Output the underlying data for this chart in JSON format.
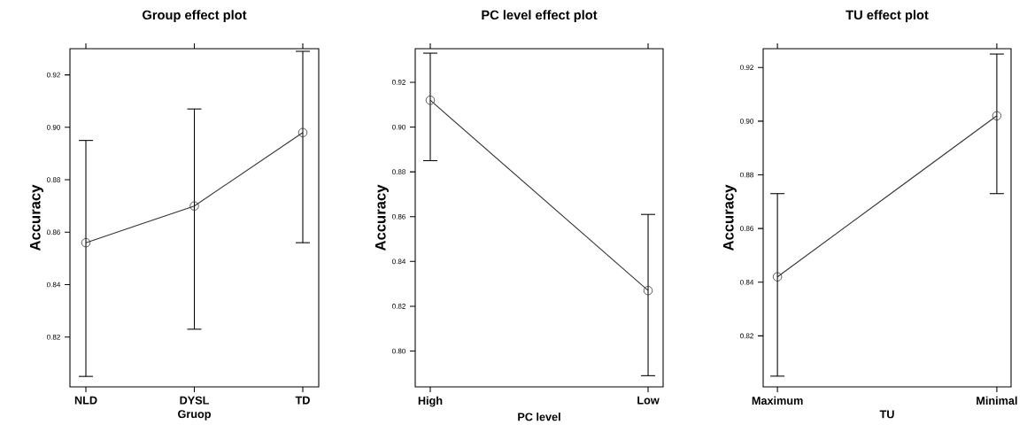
{
  "chart_data": [
    {
      "type": "line",
      "title": "Group effect plot",
      "xlabel": "Gruop",
      "ylabel": "Accuracy",
      "categories": [
        "NLD",
        "DYSL",
        "TD"
      ],
      "series": [
        {
          "color": "#333333",
          "values": [
            0.856,
            0.87,
            0.898
          ],
          "errors": [
            [
              0.805,
              0.895
            ],
            [
              0.823,
              0.907
            ],
            [
              0.856,
              0.929
            ]
          ]
        }
      ],
      "ylim": [
        0.801,
        0.93
      ],
      "yticks": [
        {
          "value": 0.82,
          "label": "0.82"
        },
        {
          "value": 0.84,
          "label": "0.84"
        },
        {
          "value": 0.86,
          "label": "0.86"
        },
        {
          "value": 0.88,
          "label": "0.88"
        },
        {
          "value": 0.9,
          "label": "0.90"
        },
        {
          "value": 0.92,
          "label": "0.92"
        }
      ],
      "marker": "circle",
      "grid": false
    },
    {
      "type": "line",
      "title": "PC level effect plot",
      "xlabel": "PC level",
      "ylabel": "Accuracy",
      "categories": [
        "High",
        "Low"
      ],
      "series": [
        {
          "color": "#333333",
          "values": [
            0.912,
            0.827
          ],
          "errors": [
            [
              0.885,
              0.933
            ],
            [
              0.789,
              0.861
            ]
          ]
        }
      ],
      "ylim": [
        0.784,
        0.935
      ],
      "yticks": [
        {
          "value": 0.8,
          "label": "0.80"
        },
        {
          "value": 0.82,
          "label": "0.82"
        },
        {
          "value": 0.84,
          "label": "0.84"
        },
        {
          "value": 0.86,
          "label": "0.86"
        },
        {
          "value": 0.88,
          "label": "0.88"
        },
        {
          "value": 0.9,
          "label": "0.90"
        },
        {
          "value": 0.92,
          "label": "0.92"
        }
      ],
      "marker": "circle",
      "grid": false
    },
    {
      "type": "line",
      "title": "TU effect plot",
      "xlabel": "TU",
      "ylabel": "Accuracy",
      "categories": [
        "Maximum",
        "Minimal"
      ],
      "series": [
        {
          "color": "#333333",
          "values": [
            0.842,
            0.902
          ],
          "errors": [
            [
              0.805,
              0.873
            ],
            [
              0.873,
              0.925
            ]
          ]
        }
      ],
      "ylim": [
        0.801,
        0.927
      ],
      "yticks": [
        {
          "value": 0.82,
          "label": "0.82"
        },
        {
          "value": 0.84,
          "label": "0.84"
        },
        {
          "value": 0.86,
          "label": "0.86"
        },
        {
          "value": 0.88,
          "label": "0.88"
        },
        {
          "value": 0.9,
          "label": "0.90"
        },
        {
          "value": 0.92,
          "label": "0.92"
        }
      ],
      "marker": "circle",
      "grid": false
    }
  ]
}
